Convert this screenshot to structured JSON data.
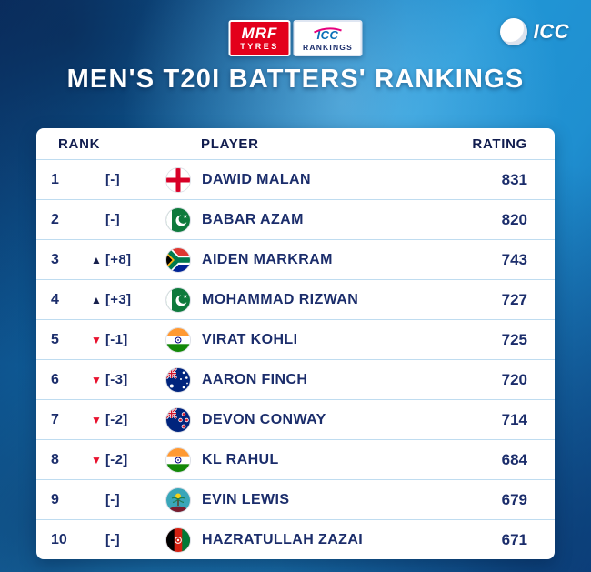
{
  "header": {
    "mrf_badge": {
      "line1": "MRF",
      "line2": "TYRES"
    },
    "icc_rankings_badge": {
      "line1": "ICC",
      "line2": "RANKINGS"
    },
    "icc_logo": {
      "text": "ICC"
    },
    "title": "MEN'S T20I BATTERS' RANKINGS"
  },
  "table": {
    "columns": [
      "RANK",
      "PLAYER",
      "RATING"
    ],
    "rows": [
      {
        "rank": "1",
        "direction": "none",
        "delta": "[-]",
        "flag": "england",
        "player": "DAWID MALAN",
        "rating": "831"
      },
      {
        "rank": "2",
        "direction": "none",
        "delta": "[-]",
        "flag": "pakistan",
        "player": "BABAR AZAM",
        "rating": "820"
      },
      {
        "rank": "3",
        "direction": "up",
        "delta": "[+8]",
        "flag": "south-africa",
        "player": "AIDEN MARKRAM",
        "rating": "743"
      },
      {
        "rank": "4",
        "direction": "up",
        "delta": "[+3]",
        "flag": "pakistan",
        "player": "MOHAMMAD RIZWAN",
        "rating": "727"
      },
      {
        "rank": "5",
        "direction": "down",
        "delta": "[-1]",
        "flag": "india",
        "player": "VIRAT KOHLI",
        "rating": "725"
      },
      {
        "rank": "6",
        "direction": "down",
        "delta": "[-3]",
        "flag": "australia",
        "player": "AARON FINCH",
        "rating": "720"
      },
      {
        "rank": "7",
        "direction": "down",
        "delta": "[-2]",
        "flag": "new-zealand",
        "player": "DEVON CONWAY",
        "rating": "714"
      },
      {
        "rank": "8",
        "direction": "down",
        "delta": "[-2]",
        "flag": "india",
        "player": "KL RAHUL",
        "rating": "684"
      },
      {
        "rank": "9",
        "direction": "none",
        "delta": "[-]",
        "flag": "west-indies",
        "player": "EVIN LEWIS",
        "rating": "679"
      },
      {
        "rank": "10",
        "direction": "none",
        "delta": "[-]",
        "flag": "afghanistan",
        "player": "HAZRATULLAH ZAZAI",
        "rating": "671"
      }
    ]
  },
  "colors": {
    "navy_text": "#1b2d6b",
    "arrow_up": "#17204d",
    "arrow_down": "#e8112d",
    "mrf_red": "#e3001b",
    "background_blue": "#2196d6"
  }
}
